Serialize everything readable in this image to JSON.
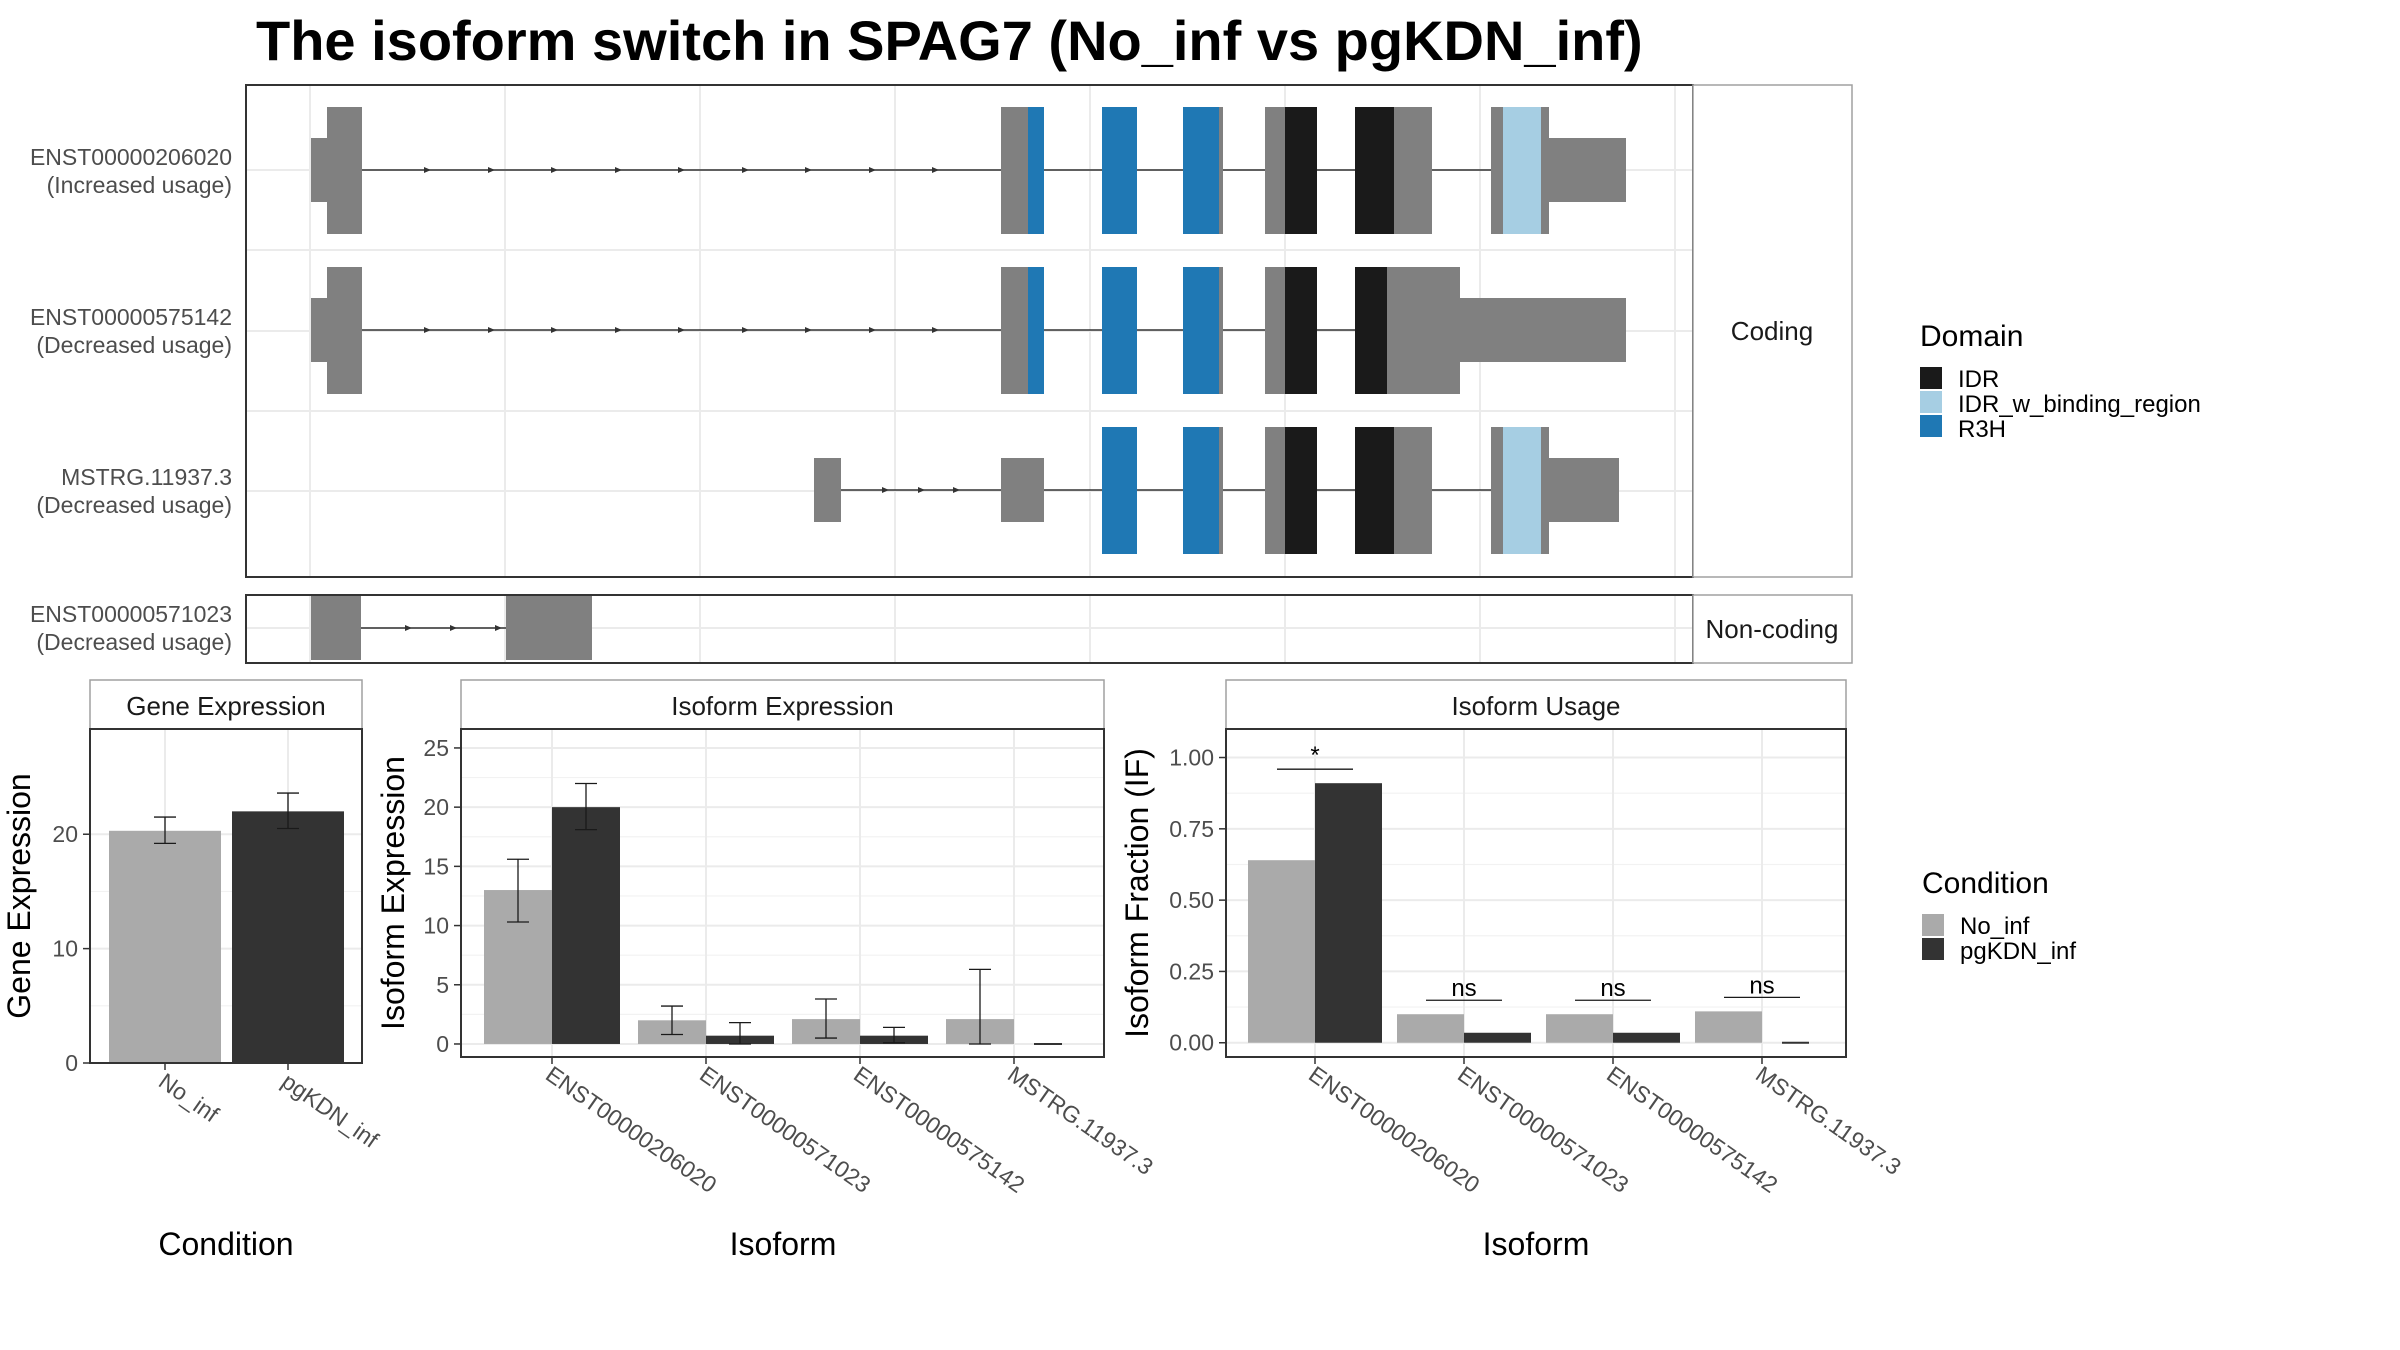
{
  "title": "The isoform switch in SPAG7 (No_inf vs pgKDN_inf)",
  "colors": {
    "exon": "#808080",
    "IDR": "#1a1a1a",
    "IDR_w_binding_region": "#a6cee3",
    "R3H": "#1f78b4",
    "No_inf": "#aaaaaa",
    "pgKDN_inf": "#333333",
    "grid": "#ebebeb",
    "panel_border": "#333333",
    "strip_border": "#a0a0a0"
  },
  "structure_panel": {
    "coding_strip": "Coding",
    "noncoding_strip": "Non-coding",
    "isoforms": [
      {
        "id": "ENST00000206020",
        "usage": "(Increased usage)",
        "group": "coding"
      },
      {
        "id": "ENST00000575142",
        "usage": "(Decreased usage)",
        "group": "coding"
      },
      {
        "id": "MSTRG.11937.3",
        "usage": "(Decreased usage)",
        "group": "coding"
      },
      {
        "id": "ENST00000571023",
        "usage": "(Decreased usage)",
        "group": "noncoding"
      }
    ]
  },
  "legend_domain": {
    "title": "Domain",
    "items": [
      {
        "label": "IDR",
        "color": "#1a1a1a"
      },
      {
        "label": "IDR_w_binding_region",
        "color": "#a6cee3"
      },
      {
        "label": "R3H",
        "color": "#1f78b4"
      }
    ]
  },
  "legend_condition": {
    "title": "Condition",
    "items": [
      {
        "label": "No_inf",
        "color": "#aaaaaa"
      },
      {
        "label": "pgKDN_inf",
        "color": "#333333"
      }
    ]
  },
  "chart_data": [
    {
      "type": "bar",
      "title": "Gene Expression",
      "xlabel": "Condition",
      "ylabel": "Gene Expression",
      "categories": [
        "No_inf",
        "pgKDN_inf"
      ],
      "values": [
        20.3,
        22.0
      ],
      "error_low": [
        19.2,
        20.5
      ],
      "error_high": [
        21.5,
        23.6
      ],
      "yticks": [
        0,
        10,
        20
      ],
      "ylim": [
        0,
        29.2
      ],
      "grid": true
    },
    {
      "type": "bar",
      "title": "Isoform Expression",
      "xlabel": "Isoform",
      "ylabel": "Isoform Expression",
      "categories": [
        "ENST00000206020",
        "ENST00000571023",
        "ENST00000575142",
        "MSTRG.11937.3"
      ],
      "series": [
        {
          "name": "No_inf",
          "values": [
            13.0,
            2.0,
            2.1,
            2.1
          ],
          "error_low": [
            10.3,
            0.8,
            0.5,
            0.0
          ],
          "error_high": [
            15.6,
            3.2,
            3.8,
            6.3
          ]
        },
        {
          "name": "pgKDN_inf",
          "values": [
            20.0,
            0.7,
            0.7,
            0.0
          ],
          "error_low": [
            18.1,
            0.0,
            0.1,
            0.0
          ],
          "error_high": [
            22.0,
            1.8,
            1.4,
            0.0
          ]
        }
      ],
      "yticks": [
        0,
        5,
        10,
        15,
        20,
        25
      ],
      "ylim": [
        -1.1,
        26.6
      ],
      "grid": true
    },
    {
      "type": "bar",
      "title": "Isoform Usage",
      "xlabel": "Isoform",
      "ylabel": "Isoform Fraction (IF)",
      "categories": [
        "ENST00000206020",
        "ENST00000571023",
        "ENST00000575142",
        "MSTRG.11937.3"
      ],
      "series": [
        {
          "name": "No_inf",
          "values": [
            0.64,
            0.1,
            0.1,
            0.11
          ]
        },
        {
          "name": "pgKDN_inf",
          "values": [
            0.91,
            0.035,
            0.035,
            0.0
          ]
        }
      ],
      "significance": [
        "*",
        "ns",
        "ns",
        "ns"
      ],
      "yticks": [
        0.0,
        0.25,
        0.5,
        0.75,
        1.0
      ],
      "ytick_labels": [
        "0.00",
        "0.25",
        "0.50",
        "0.75",
        "1.00"
      ],
      "ylim": [
        -0.05,
        1.1
      ],
      "grid": true
    }
  ]
}
